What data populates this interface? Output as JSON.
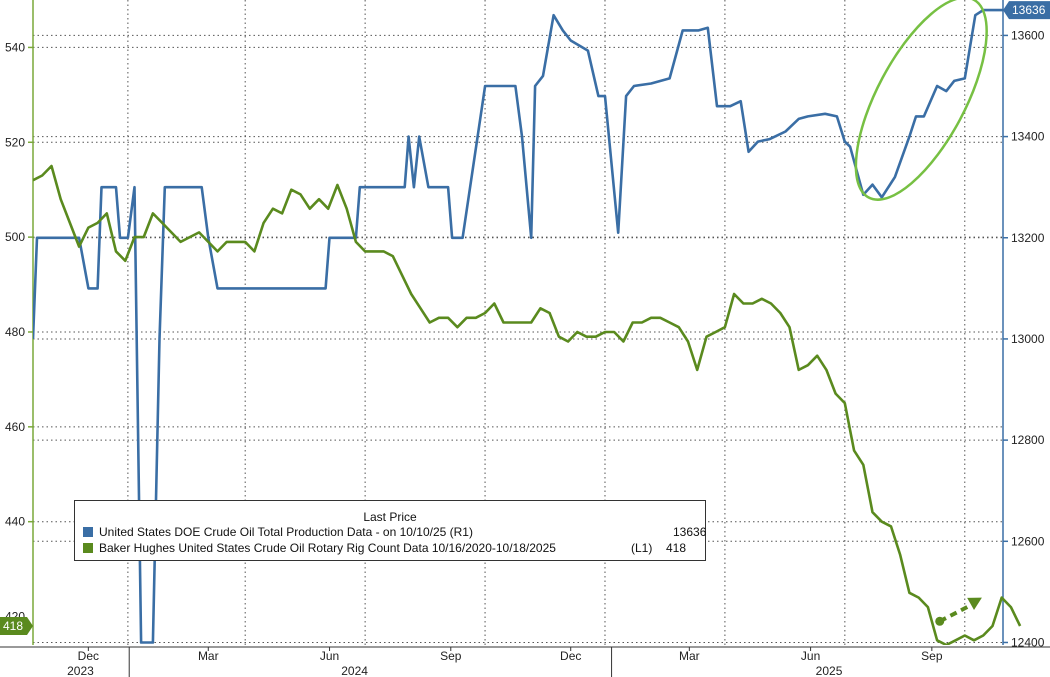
{
  "chart_data": {
    "type": "line",
    "title": "",
    "legend": {
      "title": "Last Price",
      "position": "bottom-left",
      "entries": [
        {
          "name": "United States DOE Crude Oil Total Production Data -  on 10/10/25  (R1)",
          "value": "13636",
          "color": "#3a6ea5"
        },
        {
          "name": "Baker Hughes United States Crude Oil Rotary Rig Count Data 10/16/2020-10/18/2025",
          "tag": "(L1)",
          "value": "418",
          "color": "#5a8a1e"
        }
      ]
    },
    "x_axis": {
      "type": "date",
      "range": [
        "2023-10-20",
        "2025-10-25"
      ],
      "month_ticks": [
        {
          "label": "Dec",
          "date": "2023-12-01"
        },
        {
          "label": "Mar",
          "date": "2024-03-01"
        },
        {
          "label": "Jun",
          "date": "2024-06-01"
        },
        {
          "label": "Sep",
          "date": "2024-09-01"
        },
        {
          "label": "Dec",
          "date": "2024-12-01"
        },
        {
          "label": "Mar",
          "date": "2025-03-01"
        },
        {
          "label": "Jun",
          "date": "2025-06-01"
        },
        {
          "label": "Sep",
          "date": "2025-09-01"
        }
      ],
      "year_labels": [
        {
          "label": "2023",
          "date": "2023-11-25"
        },
        {
          "label": "2024",
          "date": "2024-06-20"
        },
        {
          "label": "2025",
          "date": "2025-06-15"
        }
      ],
      "grid_dates": [
        "2023-10-20",
        "2023-12-31",
        "2024-03-29",
        "2024-06-28",
        "2024-09-27",
        "2024-12-27",
        "2025-03-28",
        "2025-06-27",
        "2025-09-26"
      ]
    },
    "y_left": {
      "range": [
        414,
        550
      ],
      "ticks": [
        440,
        460,
        480,
        500,
        520,
        540
      ],
      "label_partial": "420",
      "last_value_label": "418",
      "last_value_color": "#5a8a1e"
    },
    "y_right": {
      "range": [
        12395,
        13670
      ],
      "ticks": [
        12400,
        12600,
        12800,
        13000,
        13200,
        13400,
        13600
      ],
      "last_value_label": "13636",
      "last_value_color": "#3a6ea5"
    },
    "grid": true,
    "series": [
      {
        "name": "United States DOE Crude Oil Total Production Data -  on 10/10/25  (R1)",
        "axis": "right",
        "color": "#3a6ea5",
        "points": [
          [
            "2023-10-20",
            13000
          ],
          [
            "2023-10-23",
            13200
          ],
          [
            "2023-11-24",
            13200
          ],
          [
            "2023-12-01",
            13100
          ],
          [
            "2023-12-08",
            13100
          ],
          [
            "2023-12-11",
            13300
          ],
          [
            "2023-12-22",
            13300
          ],
          [
            "2023-12-25",
            13200
          ],
          [
            "2023-12-31",
            13200
          ],
          [
            "2024-01-05",
            13300
          ],
          [
            "2024-01-10",
            12400
          ],
          [
            "2024-01-19",
            12400
          ],
          [
            "2024-01-24",
            13000
          ],
          [
            "2024-01-28",
            13300
          ],
          [
            "2024-02-25",
            13300
          ],
          [
            "2024-03-01",
            13200
          ],
          [
            "2024-03-08",
            13100
          ],
          [
            "2024-05-29",
            13100
          ],
          [
            "2024-06-01",
            13200
          ],
          [
            "2024-06-10",
            13200
          ],
          [
            "2024-06-21",
            13200
          ],
          [
            "2024-06-24",
            13300
          ],
          [
            "2024-07-28",
            13300
          ],
          [
            "2024-07-31",
            13400
          ],
          [
            "2024-08-04",
            13300
          ],
          [
            "2024-08-08",
            13400
          ],
          [
            "2024-08-15",
            13300
          ],
          [
            "2024-08-30",
            13300
          ],
          [
            "2024-09-02",
            13200
          ],
          [
            "2024-09-10",
            13200
          ],
          [
            "2024-09-27",
            13500
          ],
          [
            "2024-10-20",
            13500
          ],
          [
            "2024-10-25",
            13400
          ],
          [
            "2024-11-01",
            13200
          ],
          [
            "2024-11-04",
            13500
          ],
          [
            "2024-11-10",
            13520
          ],
          [
            "2024-11-18",
            13640
          ],
          [
            "2024-11-25",
            13610
          ],
          [
            "2024-12-01",
            13590
          ],
          [
            "2024-12-14",
            13570
          ],
          [
            "2024-12-22",
            13480
          ],
          [
            "2024-12-27",
            13480
          ],
          [
            "2025-01-06",
            13210
          ],
          [
            "2025-01-12",
            13480
          ],
          [
            "2025-01-18",
            13500
          ],
          [
            "2025-01-31",
            13505
          ],
          [
            "2025-02-14",
            13515
          ],
          [
            "2025-02-24",
            13610
          ],
          [
            "2025-03-08",
            13610
          ],
          [
            "2025-03-15",
            13615
          ],
          [
            "2025-03-22",
            13460
          ],
          [
            "2025-04-01",
            13460
          ],
          [
            "2025-04-09",
            13470
          ],
          [
            "2025-04-15",
            13370
          ],
          [
            "2025-04-22",
            13390
          ],
          [
            "2025-05-01",
            13395
          ],
          [
            "2025-05-13",
            13410
          ],
          [
            "2025-05-23",
            13435
          ],
          [
            "2025-05-30",
            13440
          ],
          [
            "2025-06-12",
            13445
          ],
          [
            "2025-06-21",
            13440
          ],
          [
            "2025-06-27",
            13390
          ],
          [
            "2025-07-01",
            13380
          ],
          [
            "2025-07-11",
            13285
          ],
          [
            "2025-07-18",
            13305
          ],
          [
            "2025-07-25",
            13280
          ],
          [
            "2025-08-04",
            13320
          ],
          [
            "2025-08-15",
            13400
          ],
          [
            "2025-08-20",
            13440
          ],
          [
            "2025-08-26",
            13440
          ],
          [
            "2025-09-05",
            13500
          ],
          [
            "2025-09-12",
            13490
          ],
          [
            "2025-09-18",
            13510
          ],
          [
            "2025-09-26",
            13515
          ],
          [
            "2025-10-04",
            13640
          ],
          [
            "2025-10-10",
            13650
          ],
          [
            "2025-10-25",
            13650
          ]
        ]
      },
      {
        "name": "Baker Hughes United States Crude Oil Rotary Rig Count Data 10/16/2020-10/18/2025",
        "axis": "left",
        "color": "#5a8a1e",
        "points": [
          [
            "2023-10-20",
            512
          ],
          [
            "2023-10-27",
            513
          ],
          [
            "2023-11-03",
            515
          ],
          [
            "2023-11-10",
            508
          ],
          [
            "2023-11-17",
            503
          ],
          [
            "2023-11-24",
            498
          ],
          [
            "2023-12-01",
            502
          ],
          [
            "2023-12-08",
            503
          ],
          [
            "2023-12-15",
            505
          ],
          [
            "2023-12-22",
            497
          ],
          [
            "2023-12-29",
            495
          ],
          [
            "2024-01-05",
            500
          ],
          [
            "2024-01-12",
            500
          ],
          [
            "2024-01-19",
            505
          ],
          [
            "2024-01-26",
            503
          ],
          [
            "2024-02-02",
            501
          ],
          [
            "2024-02-09",
            499
          ],
          [
            "2024-02-16",
            500
          ],
          [
            "2024-02-23",
            501
          ],
          [
            "2024-03-01",
            499
          ],
          [
            "2024-03-08",
            497
          ],
          [
            "2024-03-15",
            499
          ],
          [
            "2024-03-22",
            499
          ],
          [
            "2024-03-29",
            499
          ],
          [
            "2024-04-05",
            497
          ],
          [
            "2024-04-12",
            503
          ],
          [
            "2024-04-19",
            506
          ],
          [
            "2024-04-26",
            505
          ],
          [
            "2024-05-03",
            510
          ],
          [
            "2024-05-10",
            509
          ],
          [
            "2024-05-17",
            506
          ],
          [
            "2024-05-24",
            508
          ],
          [
            "2024-05-31",
            506
          ],
          [
            "2024-06-07",
            511
          ],
          [
            "2024-06-14",
            506
          ],
          [
            "2024-06-21",
            499
          ],
          [
            "2024-06-28",
            497
          ],
          [
            "2024-07-05",
            497
          ],
          [
            "2024-07-12",
            497
          ],
          [
            "2024-07-19",
            496
          ],
          [
            "2024-07-26",
            492
          ],
          [
            "2024-08-02",
            488
          ],
          [
            "2024-08-09",
            485
          ],
          [
            "2024-08-16",
            482
          ],
          [
            "2024-08-23",
            483
          ],
          [
            "2024-08-30",
            483
          ],
          [
            "2024-09-06",
            481
          ],
          [
            "2024-09-13",
            483
          ],
          [
            "2024-09-20",
            483
          ],
          [
            "2024-09-27",
            484
          ],
          [
            "2024-10-04",
            486
          ],
          [
            "2024-10-11",
            482
          ],
          [
            "2024-10-18",
            482
          ],
          [
            "2024-10-25",
            482
          ],
          [
            "2024-11-01",
            482
          ],
          [
            "2024-11-08",
            485
          ],
          [
            "2024-11-15",
            484
          ],
          [
            "2024-11-22",
            479
          ],
          [
            "2024-11-29",
            478
          ],
          [
            "2024-12-06",
            480
          ],
          [
            "2024-12-13",
            479
          ],
          [
            "2024-12-20",
            479
          ],
          [
            "2024-12-27",
            480
          ],
          [
            "2025-01-03",
            480
          ],
          [
            "2025-01-10",
            478
          ],
          [
            "2025-01-17",
            482
          ],
          [
            "2025-01-24",
            482
          ],
          [
            "2025-01-31",
            483
          ],
          [
            "2025-02-07",
            483
          ],
          [
            "2025-02-14",
            482
          ],
          [
            "2025-02-21",
            481
          ],
          [
            "2025-02-28",
            478
          ],
          [
            "2025-03-07",
            472
          ],
          [
            "2025-03-14",
            479
          ],
          [
            "2025-03-21",
            480
          ],
          [
            "2025-03-28",
            481
          ],
          [
            "2025-04-04",
            488
          ],
          [
            "2025-04-11",
            486
          ],
          [
            "2025-04-18",
            486
          ],
          [
            "2025-04-25",
            487
          ],
          [
            "2025-05-02",
            486
          ],
          [
            "2025-05-09",
            484
          ],
          [
            "2025-05-16",
            481
          ],
          [
            "2025-05-23",
            472
          ],
          [
            "2025-05-30",
            473
          ],
          [
            "2025-06-06",
            475
          ],
          [
            "2025-06-13",
            472
          ],
          [
            "2025-06-20",
            467
          ],
          [
            "2025-06-27",
            465
          ],
          [
            "2025-07-04",
            455
          ],
          [
            "2025-07-11",
            452
          ],
          [
            "2025-07-18",
            442
          ],
          [
            "2025-07-25",
            440
          ],
          [
            "2025-08-01",
            439
          ],
          [
            "2025-08-08",
            433
          ],
          [
            "2025-08-15",
            425
          ],
          [
            "2025-08-22",
            424
          ],
          [
            "2025-08-29",
            422
          ],
          [
            "2025-09-05",
            415
          ],
          [
            "2025-09-12",
            414
          ],
          [
            "2025-09-19",
            415
          ],
          [
            "2025-09-26",
            416
          ],
          [
            "2025-10-03",
            415
          ],
          [
            "2025-10-10",
            416
          ],
          [
            "2025-10-17",
            418
          ],
          [
            "2025-10-24",
            424
          ],
          [
            "2025-10-31",
            422
          ],
          [
            "2025-11-07",
            418
          ]
        ]
      }
    ],
    "annotations": [
      {
        "type": "ellipse",
        "color": "#77c043",
        "around": "production rise Jul–Oct 2025"
      },
      {
        "type": "dashed-arrow",
        "color": "#5a8a1e",
        "from": [
          "2025-09-07",
          419
        ],
        "to": [
          "2025-10-09",
          424
        ]
      }
    ]
  }
}
